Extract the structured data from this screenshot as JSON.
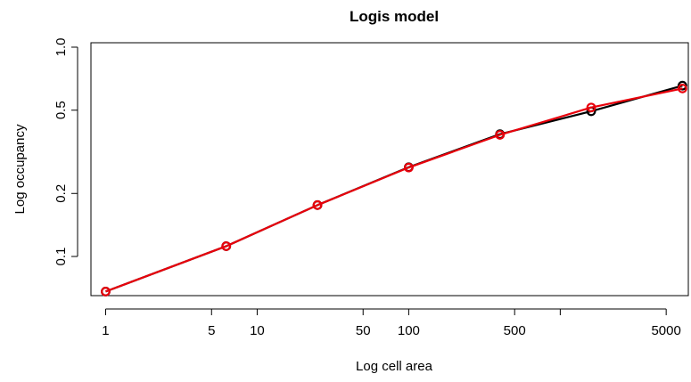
{
  "chart_data": {
    "type": "line",
    "title": "Logis model",
    "xlabel": "Log cell area",
    "ylabel": "Log occupancy",
    "x_scale": "log",
    "y_scale": "log",
    "xlim": [
      0.8,
      7000
    ],
    "ylim": [
      0.065,
      1.05
    ],
    "x_ticks": [
      1,
      5,
      10,
      50,
      100,
      500,
      1000,
      5000
    ],
    "x_tick_labels": [
      "1",
      "5",
      "10",
      "50",
      "100",
      "500",
      "",
      "5000"
    ],
    "y_ticks": [
      0.1,
      0.2,
      0.5,
      1.0
    ],
    "y_tick_labels": [
      "0.1",
      "0.2",
      "0.5",
      "1.0"
    ],
    "grid": false,
    "series": [
      {
        "color": "#000000",
        "x": [
          1,
          6.25,
          25,
          100,
          400,
          1600,
          6400
        ],
        "y": [
          0.068,
          0.112,
          0.176,
          0.267,
          0.384,
          0.494,
          0.655
        ]
      },
      {
        "color": "#e8000b",
        "x": [
          1,
          6.25,
          25,
          100,
          400,
          1600,
          6400
        ],
        "y": [
          0.068,
          0.112,
          0.176,
          0.266,
          0.381,
          0.515,
          0.635
        ]
      }
    ]
  }
}
